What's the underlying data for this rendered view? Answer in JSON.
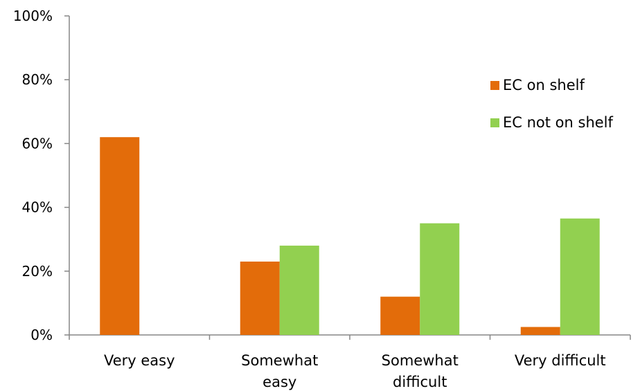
{
  "chart_data": {
    "type": "bar",
    "categories": [
      [
        "Very easy"
      ],
      [
        "Somewhat",
        "easy"
      ],
      [
        "Somewhat",
        "difficult"
      ],
      [
        "Very difficult"
      ]
    ],
    "series": [
      {
        "name": "EC on shelf",
        "color": "#E36C0A",
        "values": [
          62,
          23,
          12,
          2.5
        ]
      },
      {
        "name": "EC not on shelf",
        "color": "#92D050",
        "values": [
          0,
          28,
          35,
          36.5
        ]
      }
    ],
    "y_ticks": [
      "0%",
      "20%",
      "40%",
      "60%",
      "80%",
      "100%"
    ],
    "ylim": [
      0,
      100
    ],
    "grid": false,
    "legend_position": "right"
  }
}
